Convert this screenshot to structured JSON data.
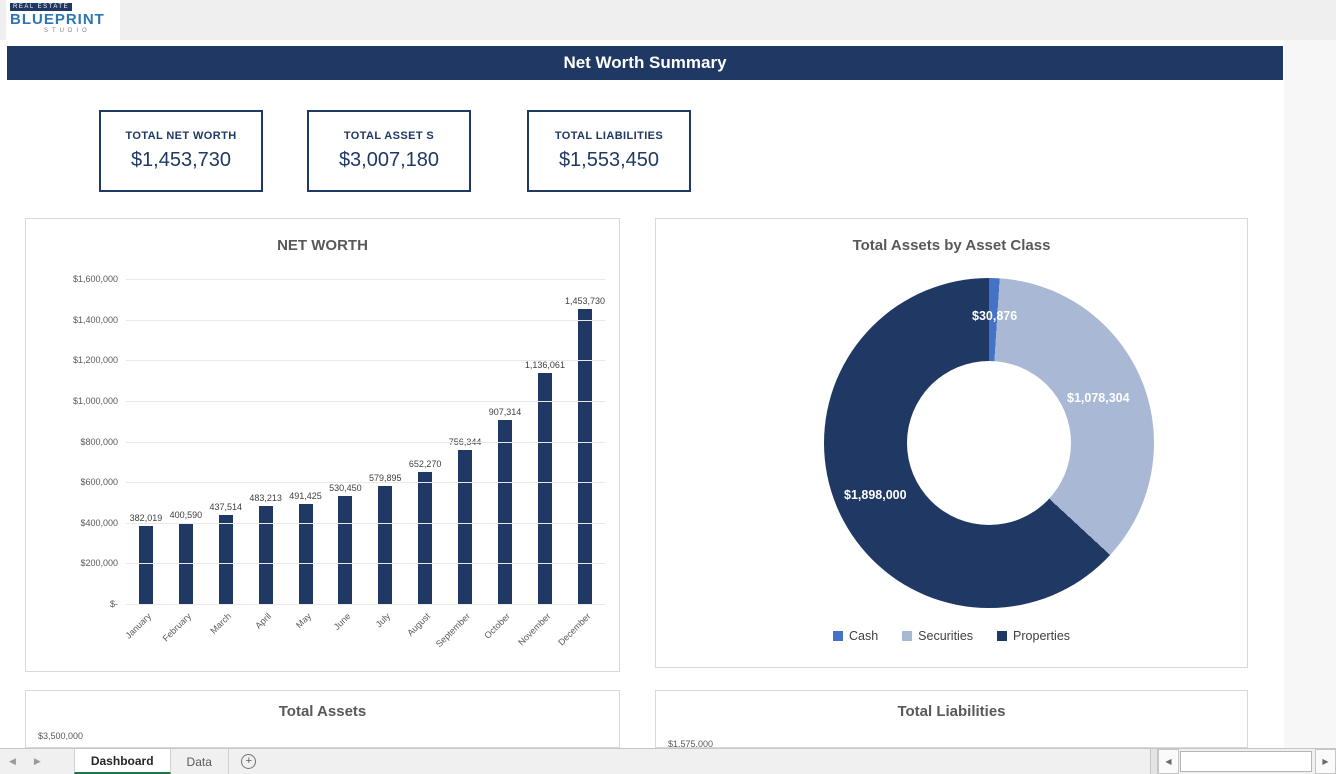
{
  "logo": {
    "top": "REAL ESTATE",
    "main": "BLUEPRINT",
    "sub": "STUDIO"
  },
  "header": {
    "title": "Net Worth Summary"
  },
  "kpis": [
    {
      "label": "TOTAL NET WORTH",
      "value": "$1,453,730"
    },
    {
      "label": "TOTAL ASSET S",
      "value": "$3,007,180"
    },
    {
      "label": "TOTAL LIABILITIES",
      "value": "$1,553,450"
    }
  ],
  "chart_data": [
    {
      "type": "bar",
      "title": "NET WORTH",
      "categories": [
        "January",
        "February",
        "March",
        "April",
        "May",
        "June",
        "July",
        "August",
        "September",
        "October",
        "November",
        "December"
      ],
      "values": [
        382019,
        400590,
        437514,
        483213,
        491425,
        530450,
        579895,
        652270,
        756344,
        907314,
        1136061,
        1453730
      ],
      "data_labels": [
        "382,019",
        "400,590",
        "437,514",
        "483,213",
        "491,425",
        "530,450",
        "579,895",
        "652,270",
        "756,344",
        "907,314",
        "1,136,061",
        "1,453,730"
      ],
      "ylim": [
        0,
        1600000
      ],
      "ytick_labels": [
        "$1,600,000",
        "$1,400,000",
        "$1,200,000",
        "$1,000,000",
        "$800,000",
        "$600,000",
        "$400,000",
        "$200,000",
        "$-"
      ],
      "bar_color": "#1F3864",
      "grid": true,
      "legend": "none"
    },
    {
      "type": "pie",
      "subtype": "donut",
      "title": "Total Assets by Asset Class",
      "labels": [
        "Cash",
        "Securities",
        "Properties"
      ],
      "values": [
        30876,
        1078304,
        1898000
      ],
      "data_labels": [
        "$30,876",
        "$1,078,304",
        "$1,898,000"
      ],
      "colors": [
        "#4472C4",
        "#A9B8D5",
        "#1F3864"
      ],
      "legend_position": "bottom"
    },
    {
      "type": "bar",
      "title": "Total Assets",
      "visible_yticks": [
        "$3,500,000"
      ]
    },
    {
      "type": "bar",
      "title": "Total Liabilities",
      "visible_yticks": [
        "$1,575,000"
      ]
    }
  ],
  "sheet_tabs": {
    "items": [
      {
        "label": "Dashboard",
        "active": true
      },
      {
        "label": "Data",
        "active": false
      }
    ]
  },
  "icons": {
    "tab_prev": "◀",
    "tab_next": "▶",
    "add_sheet": "+",
    "scroll_left": "◀",
    "scroll_right": "▶"
  }
}
